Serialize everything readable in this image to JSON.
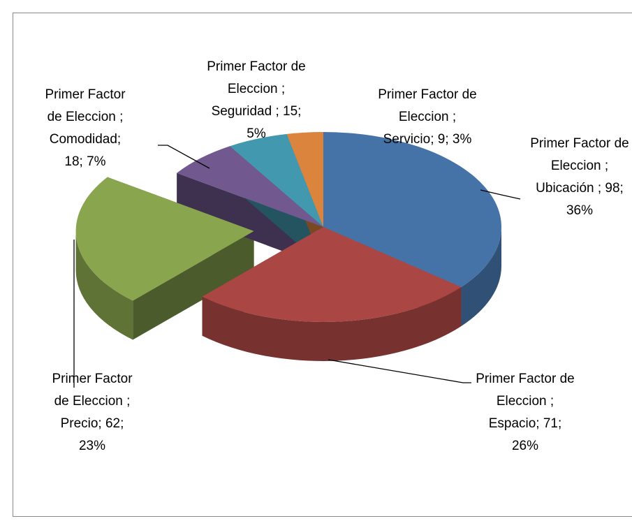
{
  "chart_data": {
    "type": "pie3d",
    "series_name": "Primer Factor de Eleccion ",
    "categories": [
      "Ubicación ",
      "Espacio",
      "Precio",
      "Comodidad",
      "Seguridad ",
      "Servicio"
    ],
    "values": [
      98,
      71,
      62,
      18,
      15,
      9
    ],
    "value_labels": [
      "Primer Factor de Eleccion ; Ubicación ; 98; 36%",
      "Primer Factor de Eleccion ; Espacio; 71; 26%",
      "Primer Factor de Eleccion ; Precio; 62; 23%",
      "Primer Factor de Eleccion ; Comodidad; 18; 7%",
      "Primer Factor de Eleccion ; Seguridad ; 15; 5%",
      "Primer Factor de Eleccion ; Servicio; 9; 3%"
    ],
    "colors": [
      "#4572a7",
      "#aa4643",
      "#89a54e",
      "#71588f",
      "#4198af",
      "#db843d"
    ],
    "exploded": [
      false,
      false,
      true,
      false,
      false,
      false
    ]
  }
}
